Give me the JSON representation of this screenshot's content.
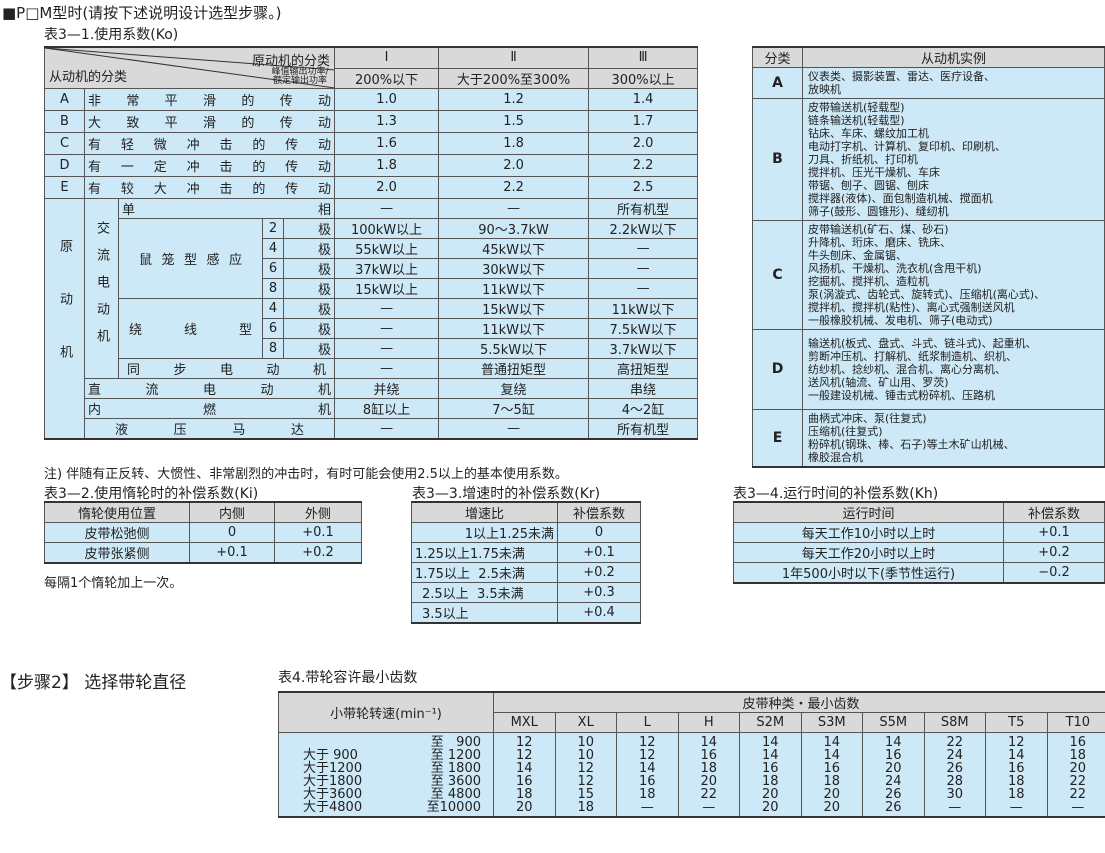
{
  "heading": "■P□M型时(请按下述说明设计选型步骤。)",
  "t31": {
    "title": "表3—1.使用系数(Ko)",
    "prime_label": "原动机的分类",
    "driven_label": "从动机的分类",
    "ratio_label": "峰值输出功率/额定输出功率",
    "cols": [
      "Ⅰ",
      "Ⅱ",
      "Ⅲ"
    ],
    "ranges": [
      "200%以下",
      "大于200%至300%",
      "300%以上"
    ],
    "rows": [
      {
        "k": "A",
        "d": "非常平滑的传动",
        "v": [
          "1.0",
          "1.2",
          "1.4"
        ]
      },
      {
        "k": "B",
        "d": "大致平滑的传动",
        "v": [
          "1.3",
          "1.5",
          "1.7"
        ]
      },
      {
        "k": "C",
        "d": "有轻微冲击的传动",
        "v": [
          "1.6",
          "1.8",
          "2.0"
        ]
      },
      {
        "k": "D",
        "d": "有一定冲击的传动",
        "v": [
          "1.8",
          "2.0",
          "2.2"
        ]
      },
      {
        "k": "E",
        "d": "有较大冲击的传动",
        "v": [
          "2.0",
          "2.2",
          "2.5"
        ]
      }
    ],
    "motor": {
      "group": "原动机",
      "ac": "交流电动机",
      "squirrel": "鼠笼型感应",
      "wound": "绕线型",
      "pole": "极",
      "single": {
        "d": "单相",
        "v": [
          "—",
          "—",
          "所有机型"
        ]
      },
      "sq": [
        {
          "p": "2",
          "v": [
            "100kW以上",
            "90～3.7kW",
            "2.2kW以下"
          ]
        },
        {
          "p": "4",
          "v": [
            "55kW以上",
            "45kW以下",
            "—"
          ]
        },
        {
          "p": "6",
          "v": [
            "37kW以上",
            "30kW以下",
            "—"
          ]
        },
        {
          "p": "8",
          "v": [
            "15kW以上",
            "11kW以下",
            "—"
          ]
        }
      ],
      "wd": [
        {
          "p": "4",
          "v": [
            "—",
            "15kW以下",
            "11kW以下"
          ]
        },
        {
          "p": "6",
          "v": [
            "—",
            "11kW以下",
            "7.5kW以下"
          ]
        },
        {
          "p": "8",
          "v": [
            "—",
            "5.5kW以下",
            "3.7kW以下"
          ]
        }
      ],
      "sync": {
        "d": "同步电动机",
        "v": [
          "—",
          "普通扭矩型",
          "高扭矩型"
        ]
      },
      "other": [
        {
          "d": "直流电动机",
          "v": [
            "并绕",
            "复绕",
            "串绕"
          ]
        },
        {
          "d": "内燃机",
          "v": [
            "8缸以上",
            "7～5缸",
            "4～2缸"
          ]
        },
        {
          "d": "液压马达",
          "v": [
            "—",
            "—",
            "所有机型"
          ]
        }
      ]
    },
    "note": "注) 伴随有正反转、大惯性、非常剧烈的冲击时，有时可能会使用2.5以上的基本使用系数。"
  },
  "examples": {
    "h": [
      "分类",
      "从动机实例"
    ],
    "rows": [
      {
        "k": "A",
        "t": "仪表类、摄影装置、雷达、医疗设备、\n放映机"
      },
      {
        "k": "B",
        "t": "皮带输送机(轻载型)\n链条输送机(轻载型)\n钻床、车床、螺纹加工机\n电动打字机、计算机、复印机、印刷机、\n刀具、折纸机、打印机\n搅拌机、压光干燥机、车床\n带锯、刨子、圆锯、刨床\n搅拌器(液体)、面包制造机械、搅面机\n筛子(鼓形、圆锥形)、缝纫机"
      },
      {
        "k": "C",
        "t": "皮带输送机(矿石、煤、砂石)\n升降机、珩床、磨床、铣床、\n牛头刨床、金属锯、\n风扬机、干燥机、洗衣机(含甩干机)\n挖掘机、搅拌机、造粒机\n泵(涡漩式、齿轮式、旋转式)、压缩机(离心式)、\n搅拌机、搅拌机(粘性)、离心式强制送风机\n一般橡胶机械、发电机、筛子(电动式)"
      },
      {
        "k": "D",
        "t": "输送机(板式、盘式、斗式、链斗式)、起重机、\n剪断冲压机、打解机、纸浆制造机、织机、\n纺纱机、捻纱机、混合机、离心分离机、\n送风机(轴流、矿山用、罗茨)\n一般建设机械、锤击式粉碎机、压路机"
      },
      {
        "k": "E",
        "t": "曲柄式冲床、泵(往复式)\n压缩机(往复式)\n粉碎机(钢珠、棒、石子)等土木矿山机械、\n橡胶混合机"
      }
    ]
  },
  "t32": {
    "title": "表3—2.使用惰轮时的补偿系数(Ki)",
    "h": [
      "惰轮使用位置",
      "内侧",
      "外侧"
    ],
    "rows": [
      [
        "皮带松弛侧",
        "0",
        "+0.1"
      ],
      [
        "皮带张紧侧",
        "+0.1",
        "+0.2"
      ]
    ],
    "note": "每隔1个惰轮加上一次。"
  },
  "t33": {
    "title": "表3—3.增速时的补偿系数(Kr)",
    "h": [
      "增速比",
      "补偿系数"
    ],
    "rows": [
      [
        "1以上1.25未满",
        "0"
      ],
      [
        "1.25以上1.75未满",
        "+0.1"
      ],
      [
        "1.75以上  2.5未满",
        "+0.2"
      ],
      [
        "2.5以上  3.5未满",
        "+0.3"
      ],
      [
        "3.5以上",
        "+0.4"
      ]
    ]
  },
  "t34": {
    "title": "表3—4.运行时间的补偿系数(Kh)",
    "h": [
      "运行时间",
      "补偿系数"
    ],
    "rows": [
      [
        "每天工作10小时以上时",
        "+0.1"
      ],
      [
        "每天工作20小时以上时",
        "+0.2"
      ],
      [
        "1年500小时以下(季节性运行)",
        "−0.2"
      ]
    ]
  },
  "step2": "【步骤2】 选择带轮直径",
  "t4": {
    "title": "表4.带轮容许最小齿数",
    "speed_h": "小带轮转速(min⁻¹)",
    "group_h": "皮带种类・最小齿数",
    "cols": [
      "MXL",
      "XL",
      "L",
      "H",
      "S2M",
      "S3M",
      "S5M",
      "S8M",
      "T5",
      "T10"
    ],
    "from": [
      "",
      "大于 900",
      "大于1200",
      "大于1800",
      "大于3600",
      "大于4800"
    ],
    "to": [
      "至   900",
      "至 1200",
      "至 1800",
      "至 3600",
      "至 4800",
      "至10000"
    ],
    "vals": [
      [
        "12",
        "12",
        "14",
        "16",
        "18",
        "20"
      ],
      [
        "10",
        "10",
        "12",
        "12",
        "15",
        "18"
      ],
      [
        "12",
        "12",
        "14",
        "16",
        "18",
        "—"
      ],
      [
        "14",
        "16",
        "18",
        "20",
        "22",
        "—"
      ],
      [
        "14",
        "14",
        "16",
        "18",
        "20",
        "20"
      ],
      [
        "14",
        "14",
        "16",
        "18",
        "20",
        "20"
      ],
      [
        "14",
        "16",
        "20",
        "24",
        "26",
        "26"
      ],
      [
        "22",
        "24",
        "26",
        "28",
        "30",
        "—"
      ],
      [
        "12",
        "14",
        "16",
        "18",
        "18",
        "—"
      ],
      [
        "16",
        "18",
        "20",
        "22",
        "22",
        "—"
      ]
    ]
  }
}
